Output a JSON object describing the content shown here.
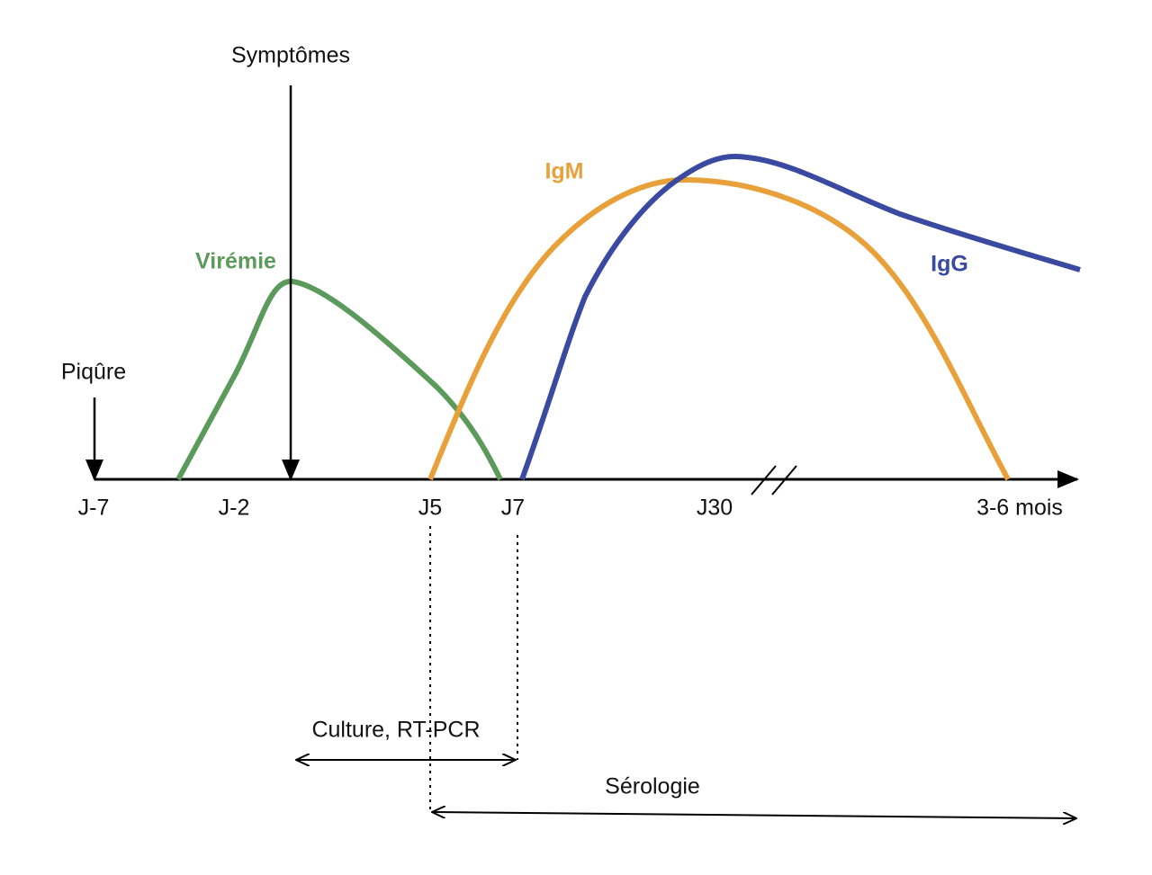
{
  "header": {
    "title": "Symptômes"
  },
  "markers": {
    "bite": "Piqûre"
  },
  "curves": {
    "viremia": "Virémie",
    "igm": "IgM",
    "igg": "IgG"
  },
  "axis": {
    "ticks": [
      "J-7",
      "J-2",
      "J5",
      "J7",
      "J30",
      "3-6 mois"
    ]
  },
  "windows": {
    "culture": "Culture, RT-PCR",
    "serology": "Sérologie"
  }
}
